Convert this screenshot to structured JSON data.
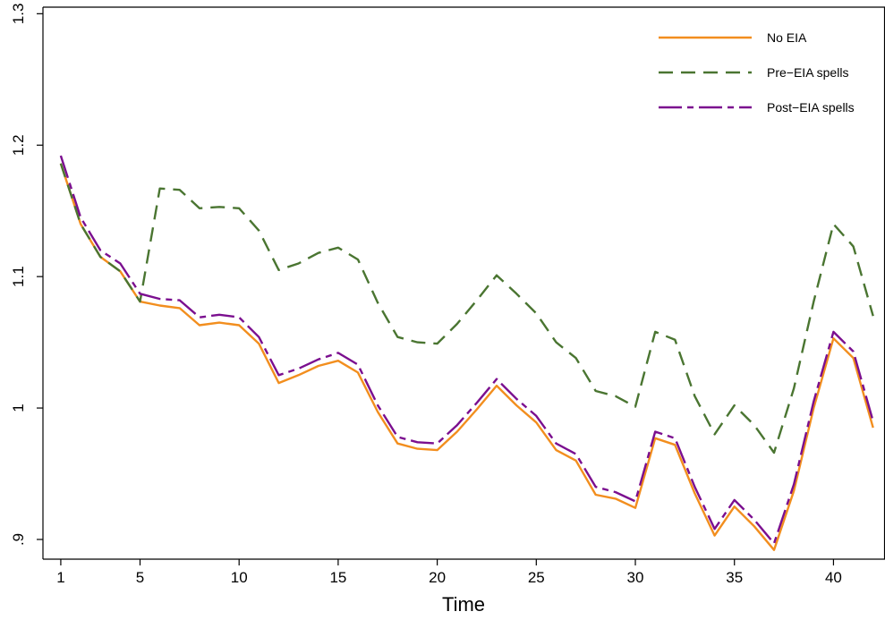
{
  "chart_data": {
    "type": "line",
    "xlabel": "Time",
    "ylabel": "",
    "xlim": [
      0.1,
      42.6
    ],
    "ylim": [
      0.885,
      1.305
    ],
    "x_ticks": [
      1,
      5,
      10,
      15,
      20,
      25,
      30,
      35,
      40
    ],
    "y_ticks": [
      0.9,
      1.0,
      1.1,
      1.2,
      1.3
    ],
    "y_tick_labels": [
      ".9",
      "1",
      "1.1",
      "1.2",
      "1.3"
    ],
    "legend_position": "top-right",
    "grid": false,
    "series": [
      {
        "name": "No EIA",
        "color": "#F28E1E",
        "dash": "solid",
        "x": [
          1,
          2,
          3,
          4,
          5,
          6,
          7,
          8,
          9,
          10,
          11,
          12,
          13,
          14,
          15,
          16,
          17,
          18,
          19,
          20,
          21,
          22,
          23,
          24,
          25,
          26,
          27,
          28,
          29,
          30,
          31,
          32,
          33,
          34,
          35,
          36,
          37,
          38,
          39,
          40,
          41,
          42
        ],
        "values": [
          1.186,
          1.14,
          1.115,
          1.104,
          1.081,
          1.078,
          1.076,
          1.063,
          1.065,
          1.063,
          1.049,
          1.019,
          1.025,
          1.032,
          1.036,
          1.027,
          0.997,
          0.973,
          0.969,
          0.968,
          0.982,
          0.999,
          1.017,
          1.002,
          0.989,
          0.968,
          0.96,
          0.934,
          0.931,
          0.924,
          0.977,
          0.972,
          0.935,
          0.903,
          0.925,
          0.91,
          0.892,
          0.937,
          1.0,
          1.053,
          1.038,
          0.985
        ]
      },
      {
        "name": "Pre−EIA spells",
        "color": "#4A7531",
        "dash": "dashed",
        "x": [
          1,
          2,
          3,
          4,
          5,
          6,
          7,
          8,
          9,
          10,
          11,
          12,
          13,
          14,
          15,
          16,
          17,
          18,
          19,
          20,
          21,
          22,
          23,
          24,
          25,
          26,
          27,
          28,
          29,
          30,
          31,
          32,
          33,
          34,
          35,
          36,
          37,
          38,
          39,
          40,
          41,
          42
        ],
        "values": [
          1.186,
          1.14,
          1.115,
          1.104,
          1.081,
          1.167,
          1.166,
          1.152,
          1.153,
          1.152,
          1.135,
          1.105,
          1.11,
          1.118,
          1.122,
          1.113,
          1.08,
          1.054,
          1.05,
          1.049,
          1.064,
          1.082,
          1.101,
          1.087,
          1.072,
          1.05,
          1.038,
          1.013,
          1.009,
          1.001,
          1.058,
          1.052,
          1.009,
          0.98,
          1.002,
          0.987,
          0.966,
          1.015,
          1.081,
          1.14,
          1.123,
          1.07
        ]
      },
      {
        "name": "Post−EIA spells",
        "color": "#7B0F8F",
        "dash": "longdash",
        "x": [
          1,
          2,
          3,
          4,
          5,
          6,
          7,
          8,
          9,
          10,
          11,
          12,
          13,
          14,
          15,
          16,
          17,
          18,
          19,
          20,
          21,
          22,
          23,
          24,
          25,
          26,
          27,
          28,
          29,
          30,
          31,
          32,
          33,
          34,
          35,
          36,
          37,
          38,
          39,
          40,
          41,
          42
        ],
        "values": [
          1.192,
          1.145,
          1.12,
          1.11,
          1.087,
          1.083,
          1.082,
          1.069,
          1.071,
          1.069,
          1.054,
          1.025,
          1.03,
          1.037,
          1.042,
          1.033,
          1.002,
          0.978,
          0.974,
          0.973,
          0.987,
          1.004,
          1.022,
          1.007,
          0.994,
          0.973,
          0.965,
          0.94,
          0.936,
          0.929,
          0.982,
          0.977,
          0.94,
          0.908,
          0.93,
          0.915,
          0.897,
          0.942,
          1.005,
          1.058,
          1.043,
          0.99
        ]
      }
    ]
  }
}
